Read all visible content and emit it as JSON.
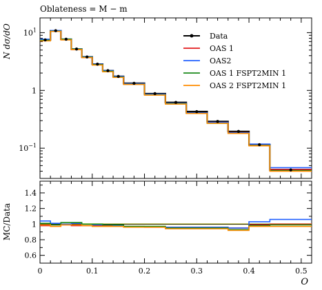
{
  "chart_data": {
    "type": "line",
    "title": "Oblateness = M − m",
    "xlabel": "O",
    "main_ylabel": "N dσ/dO",
    "ratio_ylabel": "MC/Data",
    "log_y": true,
    "grid": false,
    "legend_placement": "top-right",
    "xlim": [
      0,
      0.52
    ],
    "main_ylim": [
      0.03,
      18
    ],
    "ratio_ylim": [
      0.5,
      1.55
    ],
    "x_ticks": [
      "0",
      "0.1",
      "0.2",
      "0.3",
      "0.4",
      "0.5"
    ],
    "main_y_ticks": [
      {
        "value": 0.1,
        "base": "10",
        "exp": "−1"
      },
      {
        "value": 1,
        "base": "1",
        "exp": ""
      },
      {
        "value": 10,
        "base": "10",
        "exp": "1"
      }
    ],
    "ratio_y_ticks": [
      "0.6",
      "0.8",
      "1",
      "1.2",
      "1.4"
    ],
    "bin_edges": [
      0,
      0.02,
      0.04,
      0.06,
      0.08,
      0.1,
      0.12,
      0.14,
      0.16,
      0.2,
      0.24,
      0.28,
      0.32,
      0.36,
      0.4,
      0.44,
      0.52
    ],
    "data": {
      "name": "Data",
      "color": "#000000",
      "values": [
        7.5,
        10.8,
        7.7,
        5.2,
        3.8,
        2.85,
        2.2,
        1.75,
        1.33,
        0.88,
        0.62,
        0.43,
        0.29,
        0.195,
        0.115,
        0.042
      ],
      "errors": [
        0.3,
        0.4,
        0.3,
        0.2,
        0.15,
        0.1,
        0.08,
        0.06,
        0.05,
        0.03,
        0.02,
        0.015,
        0.01,
        0.008,
        0.005,
        0.002
      ]
    },
    "series": [
      {
        "name": "OAS 1",
        "color": "#e31a1c",
        "values": [
          7.3,
          10.7,
          7.6,
          5.1,
          3.7,
          2.8,
          2.15,
          1.72,
          1.29,
          0.85,
          0.6,
          0.41,
          0.28,
          0.186,
          0.114,
          0.043
        ],
        "ratio": [
          0.98,
          0.99,
          0.99,
          0.98,
          0.98,
          0.98,
          0.98,
          0.98,
          0.97,
          0.96,
          0.96,
          0.96,
          0.96,
          0.95,
          0.99,
          1.0
        ]
      },
      {
        "name": "OAS2",
        "color": "#1f5fff",
        "values": [
          7.7,
          10.9,
          7.7,
          5.25,
          3.8,
          2.85,
          2.2,
          1.74,
          1.31,
          0.86,
          0.6,
          0.41,
          0.28,
          0.185,
          0.118,
          0.046
        ],
        "ratio": [
          1.04,
          1.01,
          1.0,
          1.01,
          1.0,
          0.99,
          0.99,
          0.98,
          0.97,
          0.97,
          0.96,
          0.96,
          0.96,
          0.95,
          1.03,
          1.06
        ]
      },
      {
        "name": "OAS 1 FSPT2MIN 1",
        "color": "#1a8a1a",
        "values": [
          7.4,
          10.6,
          7.7,
          5.2,
          3.75,
          2.8,
          2.15,
          1.7,
          1.28,
          0.84,
          0.59,
          0.4,
          0.27,
          0.18,
          0.112,
          0.041
        ],
        "ratio": [
          1.01,
          0.99,
          1.02,
          1.02,
          1.0,
          1.0,
          0.99,
          0.99,
          0.97,
          0.97,
          0.95,
          0.95,
          0.95,
          0.93,
          0.98,
          0.99
        ]
      },
      {
        "name": "OAS 2 FSPT2MIN 1",
        "color": "#ff8c00",
        "values": [
          7.2,
          10.5,
          7.5,
          5.1,
          3.7,
          2.75,
          2.1,
          1.68,
          1.27,
          0.83,
          0.58,
          0.4,
          0.27,
          0.18,
          0.11,
          0.04
        ],
        "ratio": [
          0.99,
          0.97,
          0.99,
          0.99,
          0.98,
          0.97,
          0.97,
          0.97,
          0.96,
          0.96,
          0.94,
          0.94,
          0.94,
          0.92,
          0.97,
          0.97
        ]
      }
    ]
  }
}
